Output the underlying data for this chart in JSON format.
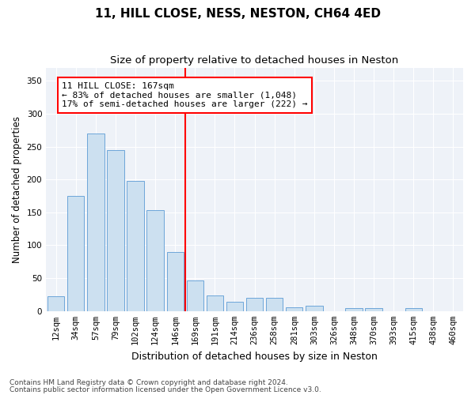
{
  "title": "11, HILL CLOSE, NESS, NESTON, CH64 4ED",
  "subtitle": "Size of property relative to detached houses in Neston",
  "xlabel": "Distribution of detached houses by size in Neston",
  "ylabel": "Number of detached properties",
  "footnote1": "Contains HM Land Registry data © Crown copyright and database right 2024.",
  "footnote2": "Contains public sector information licensed under the Open Government Licence v3.0.",
  "bar_labels": [
    "12sqm",
    "34sqm",
    "57sqm",
    "79sqm",
    "102sqm",
    "124sqm",
    "146sqm",
    "169sqm",
    "191sqm",
    "214sqm",
    "236sqm",
    "258sqm",
    "281sqm",
    "303sqm",
    "326sqm",
    "348sqm",
    "370sqm",
    "393sqm",
    "415sqm",
    "438sqm",
    "460sqm"
  ],
  "bar_values": [
    22,
    175,
    270,
    245,
    198,
    153,
    90,
    46,
    24,
    14,
    20,
    20,
    6,
    8,
    0,
    5,
    5,
    0,
    5,
    0,
    0
  ],
  "bar_color": "#cce0f0",
  "bar_edge_color": "#5b9bd5",
  "ylim": [
    0,
    370
  ],
  "yticks": [
    0,
    50,
    100,
    150,
    200,
    250,
    300,
    350
  ],
  "vline_color": "red",
  "vline_index": 7,
  "annotation_text": "11 HILL CLOSE: 167sqm\n← 83% of detached houses are smaller (1,048)\n17% of semi-detached houses are larger (222) →",
  "annotation_box_color": "white",
  "annotation_box_edge": "red",
  "title_fontsize": 11,
  "subtitle_fontsize": 9.5,
  "xlabel_fontsize": 9,
  "ylabel_fontsize": 8.5,
  "tick_fontsize": 7.5,
  "annotation_fontsize": 8,
  "footnote_fontsize": 6.5,
  "background_color": "#eef2f8"
}
